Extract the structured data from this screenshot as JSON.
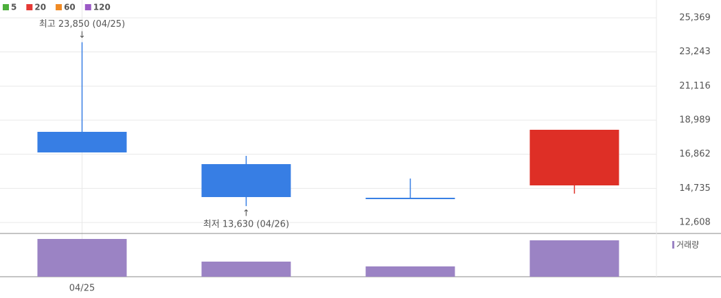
{
  "chart_data": {
    "type": "candlestick",
    "categories": [
      "04/25",
      null,
      null,
      null
    ],
    "open": [
      18261,
      16248,
      14150,
      14921
    ],
    "high": [
      23850,
      16762,
      15349,
      18389
    ],
    "low": [
      16976,
      13630,
      14150,
      14407
    ],
    "close": [
      16976,
      14193,
      14150,
      18389
    ],
    "up_color": "#de2f26",
    "down_color": "#377ee4",
    "ylim": [
      11924,
      26482
    ],
    "yticks": [
      {
        "value": 25369,
        "label": "25,369"
      },
      {
        "value": 23243,
        "label": "23,243"
      },
      {
        "value": 21116,
        "label": "21,116"
      },
      {
        "value": 18989,
        "label": "18,989"
      },
      {
        "value": 16862,
        "label": "16,862"
      },
      {
        "value": 14735,
        "label": "14,735"
      },
      {
        "value": 12608,
        "label": "12,608"
      }
    ],
    "grid": true,
    "moving_averages": [
      {
        "name": "5",
        "color": "#4caf3c"
      },
      {
        "name": "20",
        "color": "#e53935"
      },
      {
        "name": "60",
        "color": "#f08a24"
      },
      {
        "name": "120",
        "color": "#9b59c6"
      }
    ],
    "volume": {
      "name": "거래량",
      "color": "#9b83c4",
      "values": [
        55,
        22,
        15,
        53
      ]
    },
    "annotations": [
      {
        "text": "최고 23,850 (04/25)",
        "color": "#e02020"
      },
      {
        "text": "최저 13,630 (04/26)",
        "color": "#2a7fd0"
      }
    ]
  }
}
